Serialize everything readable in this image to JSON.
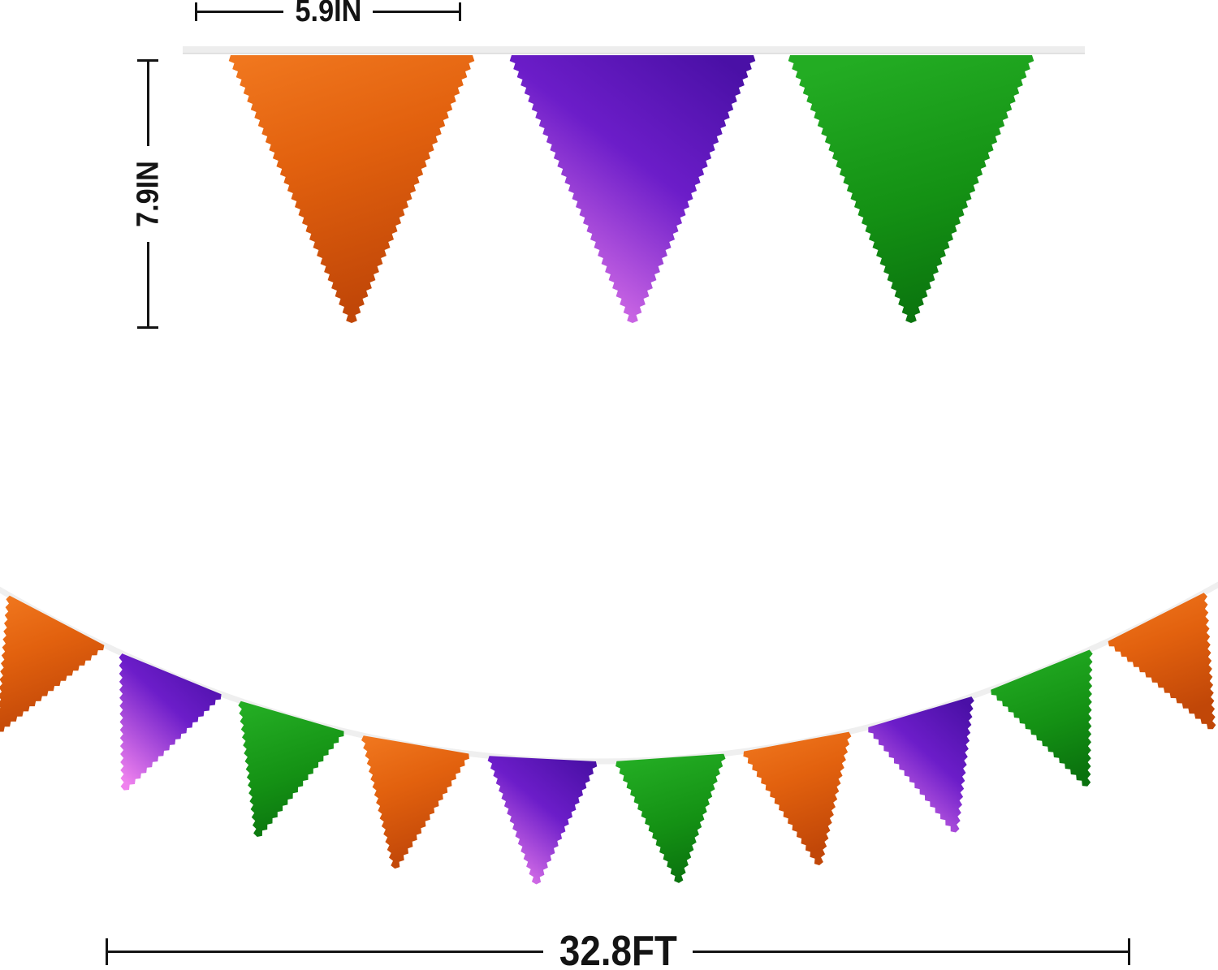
{
  "annotations": {
    "flag_width_label": "5.9IN",
    "flag_height_label": "7.9IN",
    "banner_length_label": "32.8FT"
  },
  "palette": {
    "orange": {
      "light": "#F1781F",
      "base": "#E2610E",
      "dark": "#C14708"
    },
    "purple": {
      "dark": "#4A10A6",
      "base": "#6C1DC9",
      "light": "#EF82EE"
    },
    "green": {
      "light": "#23AC23",
      "base": "#149114",
      "dark": "#0A720E"
    },
    "string": "#EFEFEF",
    "string_top": "#EDEDED",
    "string_top_shadow": "#DBDBDB",
    "dimension_color": "#141414"
  },
  "top_banner": {
    "flags": [
      "orange",
      "purple",
      "green"
    ]
  },
  "garland": {
    "flags": [
      "orange",
      "purple",
      "green",
      "orange",
      "purple",
      "green",
      "orange",
      "purple",
      "green",
      "orange"
    ]
  }
}
